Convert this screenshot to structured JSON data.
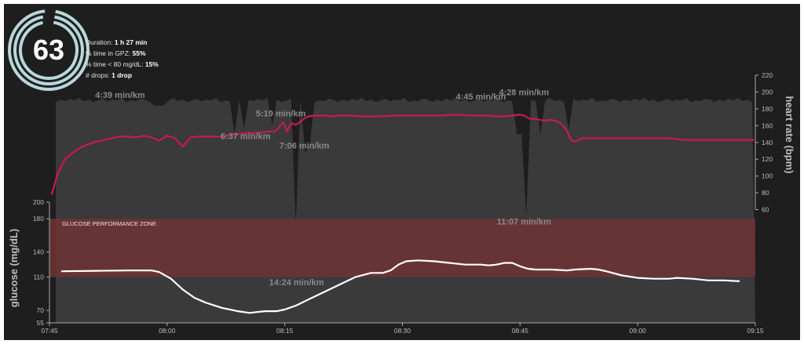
{
  "score": {
    "value": "63",
    "stats": [
      {
        "label": "Duration:",
        "value": "1 h 27 min"
      },
      {
        "label": "% time in GPZ:",
        "value": "55%"
      },
      {
        "label": "% time < 80 mg/dL:",
        "value": "15%"
      },
      {
        "label": "# drops:",
        "value": "1 drop"
      }
    ]
  },
  "chart_data": {
    "type": "line",
    "title": "",
    "colors": {
      "background": "#1e1e1e",
      "pace_area": "#3a3a3a",
      "heart_rate": "#c8185a",
      "glucose": "#ffffff",
      "zone_fill": "#6e3434",
      "axis_text": "#bbbbbb",
      "pace_label": "#8a8a8a"
    },
    "x_axis": {
      "ticks": [
        "07:45",
        "08:00",
        "08:15",
        "08:30",
        "08:45",
        "09:00",
        "09:15"
      ],
      "range_min": [
        0,
        90
      ]
    },
    "glucose_axis": {
      "label": "glucose (mg/dL)",
      "ticks": [
        55,
        70,
        110,
        140,
        180,
        200
      ],
      "range": [
        55,
        200
      ]
    },
    "heart_rate_axis": {
      "label": "heart rate (bpm)",
      "ticks": [
        60,
        80,
        100,
        120,
        140,
        160,
        180,
        200,
        220
      ],
      "range": [
        40,
        220
      ]
    },
    "zone": {
      "label": "GLUCOSE PERFORMANCE ZONE",
      "low": 110,
      "high": 180
    },
    "pace_labels": [
      {
        "text": "4:39 min/km",
        "t": 9,
        "hr": 193
      },
      {
        "text": "6:37 min/km",
        "t": 25,
        "hr": 144
      },
      {
        "text": "5:19 min/km",
        "t": 29.5,
        "hr": 171
      },
      {
        "text": "7:06 min/km",
        "t": 32.5,
        "hr": 133
      },
      {
        "text": "14:24 min/km",
        "t": 31.5,
        "glucose": 100
      },
      {
        "text": "4:45 min/km",
        "t": 55,
        "hr": 191
      },
      {
        "text": "4:28 min/km",
        "t": 60.5,
        "hr": 196
      },
      {
        "text": "11:07 min/km",
        "t": 60.5,
        "glucose": 173
      }
    ],
    "heart_rate_series": {
      "name": "heart rate",
      "points": [
        [
          0.3,
          78
        ],
        [
          1,
          102
        ],
        [
          2,
          120
        ],
        [
          3,
          128
        ],
        [
          4,
          134
        ],
        [
          5,
          138
        ],
        [
          6,
          141
        ],
        [
          7,
          143
        ],
        [
          8,
          145
        ],
        [
          9,
          147
        ],
        [
          10,
          147
        ],
        [
          11,
          146
        ],
        [
          12,
          148
        ],
        [
          13,
          146
        ],
        [
          14,
          142
        ],
        [
          15,
          148
        ],
        [
          16,
          145
        ],
        [
          17,
          135
        ],
        [
          18,
          146
        ],
        [
          19,
          147
        ],
        [
          20,
          147
        ],
        [
          21,
          147
        ],
        [
          22,
          147
        ],
        [
          23,
          148
        ],
        [
          24,
          150
        ],
        [
          25,
          151
        ],
        [
          26,
          151
        ],
        [
          27,
          152
        ],
        [
          28,
          153
        ],
        [
          28.8,
          153
        ],
        [
          29.3,
          158
        ],
        [
          29.8,
          164
        ],
        [
          30.3,
          153
        ],
        [
          30.8,
          163
        ],
        [
          31.4,
          161
        ],
        [
          31.9,
          164
        ],
        [
          32.4,
          168
        ],
        [
          33,
          171
        ],
        [
          34,
          172
        ],
        [
          35,
          172
        ],
        [
          36,
          171
        ],
        [
          37,
          172
        ],
        [
          38,
          172
        ],
        [
          40,
          171
        ],
        [
          42,
          171
        ],
        [
          44,
          172
        ],
        [
          46,
          172
        ],
        [
          48,
          172
        ],
        [
          50,
          172
        ],
        [
          52,
          173
        ],
        [
          54,
          172
        ],
        [
          56,
          172
        ],
        [
          57,
          171
        ],
        [
          58,
          171
        ],
        [
          59,
          172
        ],
        [
          60,
          173
        ],
        [
          60.5,
          172
        ],
        [
          61.3,
          168
        ],
        [
          62,
          168
        ],
        [
          63,
          166
        ],
        [
          64,
          167
        ],
        [
          65,
          164
        ],
        [
          65.5,
          160
        ],
        [
          65.9,
          155
        ],
        [
          66.5,
          143
        ],
        [
          67,
          141
        ],
        [
          68,
          145
        ],
        [
          69,
          145
        ],
        [
          71,
          145
        ],
        [
          73,
          145
        ],
        [
          75,
          145
        ],
        [
          77,
          145
        ],
        [
          79,
          145
        ],
        [
          80,
          144
        ],
        [
          81,
          143
        ],
        [
          82,
          143
        ],
        [
          84,
          143
        ],
        [
          86,
          143
        ],
        [
          88,
          143
        ],
        [
          90,
          143
        ]
      ]
    },
    "glucose_series": {
      "name": "glucose",
      "points": [
        [
          1.5,
          117
        ],
        [
          6,
          117.5
        ],
        [
          10,
          118
        ],
        [
          13,
          118
        ],
        [
          14,
          116
        ],
        [
          15.5,
          108
        ],
        [
          17,
          95
        ],
        [
          18.5,
          85
        ],
        [
          20,
          79
        ],
        [
          22,
          73
        ],
        [
          24,
          69
        ],
        [
          25.5,
          67
        ],
        [
          26.5,
          68
        ],
        [
          27.5,
          69
        ],
        [
          29,
          69
        ],
        [
          30,
          71
        ],
        [
          31.5,
          76
        ],
        [
          33,
          83
        ],
        [
          35,
          92
        ],
        [
          37,
          101
        ],
        [
          39,
          110
        ],
        [
          41,
          115
        ],
        [
          42.5,
          115
        ],
        [
          43.5,
          118
        ],
        [
          44.5,
          125
        ],
        [
          45.5,
          129
        ],
        [
          47,
          130
        ],
        [
          49,
          129
        ],
        [
          51,
          127
        ],
        [
          53,
          125
        ],
        [
          55,
          125
        ],
        [
          56,
          124
        ],
        [
          57,
          125
        ],
        [
          58,
          127
        ],
        [
          59,
          127
        ],
        [
          60,
          123
        ],
        [
          61,
          120
        ],
        [
          62,
          119
        ],
        [
          64,
          119
        ],
        [
          66,
          118
        ],
        [
          67,
          119
        ],
        [
          69,
          120
        ],
        [
          70,
          119
        ],
        [
          71,
          117
        ],
        [
          73,
          112
        ],
        [
          75,
          109
        ],
        [
          77,
          108
        ],
        [
          79,
          108
        ],
        [
          80,
          109
        ],
        [
          82,
          108
        ],
        [
          84,
          106
        ],
        [
          86,
          106
        ],
        [
          88,
          105
        ]
      ]
    }
  }
}
